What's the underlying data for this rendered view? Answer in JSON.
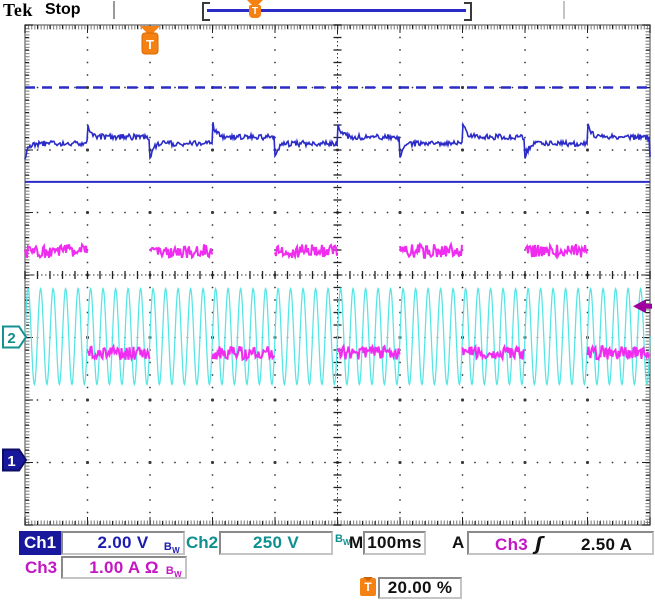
{
  "header": {
    "logo": "Tek",
    "acq_status": "Stop"
  },
  "record_view": {
    "trigger_marker": "T",
    "trigger_position_pct": 20.0
  },
  "graticule_markers": {
    "ch1_zero_label": "1",
    "ch2_zero_label": "2",
    "trigger_t_label": "T"
  },
  "bw_glyph": {
    "main": "B",
    "sub": "W"
  },
  "readouts": {
    "ch1": {
      "label": "Ch1",
      "value": "2.00 V"
    },
    "ch2": {
      "label": "Ch2",
      "value": "250 V"
    },
    "ch3": {
      "label": "Ch3",
      "value": "1.00 A Ω"
    },
    "timebase": {
      "label": "M",
      "value": "100ms"
    },
    "trigger": {
      "mode_label": "A",
      "source": "Ch3",
      "slope": "ʃ",
      "level": "2.50 A"
    },
    "trigger_position": {
      "icon": "T",
      "value": "20.00 %"
    }
  },
  "colors": {
    "ch1_trace": "#2b2bc8",
    "ch2_trace": "#55e5e5",
    "ch3_trace": "#f02cf0",
    "ch1_badge_bg": "#18189c",
    "navy_text": "#1c1cb0",
    "teal_text": "#0f9090",
    "magenta_text": "#c317c3",
    "orange_marker": "#f58113",
    "trigger_arrow": "#a000a0",
    "grid_dots": "#3a3a3a",
    "frame_gray": "#8a8a8a"
  },
  "chart_data": {
    "type": "line",
    "instrument": "oscilloscope",
    "acquisition_status": "Stop",
    "grid": {
      "horizontal_divisions": 10,
      "vertical_divisions": 8,
      "minor_ticks_per_div": 5
    },
    "timebase_per_div": "100ms",
    "trigger": {
      "mode": "A",
      "source": "Ch3",
      "slope": "rising",
      "level": "2.50 A",
      "horizontal_position_pct": 20.0,
      "level_arrow_y_div": 4.5
    },
    "traces": [
      {
        "name": "Ch1",
        "color": "#2b2bc8",
        "vertical_scale": "2.00 V",
        "bandwidth_limit": true,
        "shape": "square_with_transients",
        "period_div": 2.0,
        "high_level_y_div": 1.792,
        "low_level_y_div": 1.896,
        "overshoot_y_div": 1.552,
        "undershoot_y_div": 2.128,
        "noise_halfwidth_div": 0.045,
        "zero_marker_y_div": 6.96
      },
      {
        "name": "Ch2",
        "color": "#55e5e5",
        "vertical_scale": "250 V",
        "bandwidth_limit": true,
        "shape": "sine",
        "cycles_per_screen": 50,
        "center_y_div": 4.984,
        "amplitude_div": 0.768,
        "zero_marker_y_div": 4.992
      },
      {
        "name": "Ch3",
        "color": "#f02cf0",
        "vertical_scale": "1.00 A",
        "coupling": "Ω",
        "bandwidth_limit": true,
        "shape": "alternating_noise_bands",
        "period_div": 2.0,
        "high_band_y_div": 3.616,
        "low_band_y_div": 5.248,
        "band_halfwidth_div": 0.11,
        "high_intervals_start_div": [
          0,
          2,
          4,
          6,
          8
        ],
        "low_intervals_start_div": [
          1,
          3,
          5,
          7,
          9
        ],
        "interval_width_div": 1.0
      }
    ],
    "reference_lines": [
      {
        "color": "#2b2bc8",
        "style": "dashed",
        "y_div": 1.0
      },
      {
        "color": "#2b2bc8",
        "style": "solid",
        "y_div": 2.51
      }
    ]
  }
}
